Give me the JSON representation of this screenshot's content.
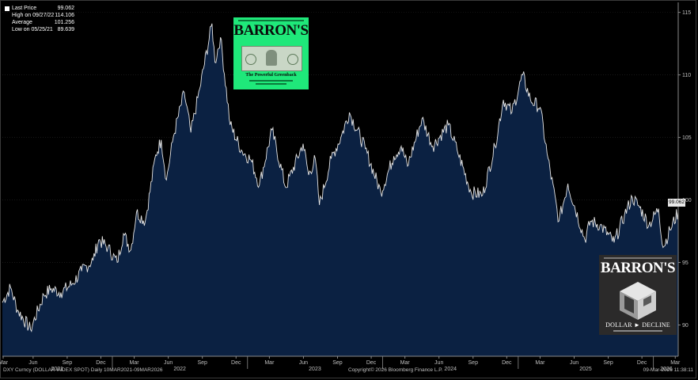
{
  "chart_data": {
    "type": "area",
    "y_axis_side": "right",
    "ylim": [
      87.5,
      115.8
    ],
    "yticks": [
      90,
      95,
      100,
      105,
      110,
      115
    ],
    "x_start": "2021-03-10",
    "x_end": "2026-03-09",
    "month_ticks": [
      "Mar",
      "Jun",
      "Sep",
      "Dec",
      "Mar",
      "Jun",
      "Sep",
      "Dec",
      "Mar",
      "Jun",
      "Sep",
      "Dec",
      "Mar",
      "Jun",
      "Sep",
      "Dec",
      "Mar",
      "Jun",
      "Sep",
      "Dec",
      "Mar"
    ],
    "year_labels": [
      "2021",
      "2022",
      "2023",
      "2024",
      "2025",
      "2026"
    ],
    "fill_color": "#0b2142",
    "line_color": "#e6e6e6",
    "series": [
      {
        "points": [
          [
            "2021-03-10",
            91.8
          ],
          [
            "2021-04-01",
            93.0
          ],
          [
            "2021-04-20",
            91.2
          ],
          [
            "2021-05-25",
            89.639
          ],
          [
            "2021-06-30",
            92.4
          ],
          [
            "2021-07-20",
            92.9
          ],
          [
            "2021-08-15",
            92.6
          ],
          [
            "2021-09-15",
            93.3
          ],
          [
            "2021-10-10",
            94.3
          ],
          [
            "2021-11-10",
            95.2
          ],
          [
            "2021-11-25",
            96.8
          ],
          [
            "2021-12-20",
            96.2
          ],
          [
            "2022-01-14",
            95.0
          ],
          [
            "2022-01-31",
            97.3
          ],
          [
            "2022-02-20",
            96.0
          ],
          [
            "2022-03-07",
            99.0
          ],
          [
            "2022-03-31",
            98.3
          ],
          [
            "2022-04-28",
            103.6
          ],
          [
            "2022-05-13",
            104.8
          ],
          [
            "2022-05-27",
            101.6
          ],
          [
            "2022-06-15",
            105.1
          ],
          [
            "2022-07-14",
            108.6
          ],
          [
            "2022-08-01",
            105.4
          ],
          [
            "2022-08-25",
            108.9
          ],
          [
            "2022-09-27",
            114.106
          ],
          [
            "2022-10-05",
            111.0
          ],
          [
            "2022-10-20",
            113.0
          ],
          [
            "2022-11-15",
            106.0
          ],
          [
            "2022-12-15",
            104.0
          ],
          [
            "2023-01-10",
            103.2
          ],
          [
            "2023-02-02",
            101.2
          ],
          [
            "2023-03-08",
            105.6
          ],
          [
            "2023-04-14",
            101.0
          ],
          [
            "2023-05-31",
            104.5
          ],
          [
            "2023-06-15",
            102.0
          ],
          [
            "2023-07-03",
            103.3
          ],
          [
            "2023-07-14",
            99.6
          ],
          [
            "2023-08-15",
            103.3
          ],
          [
            "2023-09-10",
            105.0
          ],
          [
            "2023-10-03",
            107.0
          ],
          [
            "2023-11-15",
            104.1
          ],
          [
            "2023-12-27",
            100.6
          ],
          [
            "2024-01-31",
            103.5
          ],
          [
            "2024-02-20",
            104.3
          ],
          [
            "2024-03-08",
            102.7
          ],
          [
            "2024-04-16",
            106.5
          ],
          [
            "2024-05-15",
            104.3
          ],
          [
            "2024-06-26",
            106.0
          ],
          [
            "2024-07-20",
            104.0
          ],
          [
            "2024-08-27",
            100.6
          ],
          [
            "2024-09-27",
            100.4
          ],
          [
            "2024-10-30",
            104.3
          ],
          [
            "2024-11-22",
            108.0
          ],
          [
            "2024-12-15",
            107.0
          ],
          [
            "2025-01-13",
            110.0
          ],
          [
            "2025-02-03",
            108.0
          ],
          [
            "2025-03-01",
            107.4
          ],
          [
            "2025-03-20",
            103.7
          ],
          [
            "2025-04-21",
            98.3
          ],
          [
            "2025-05-15",
            101.3
          ],
          [
            "2025-06-30",
            96.8
          ],
          [
            "2025-07-15",
            98.3
          ],
          [
            "2025-08-10",
            98.0
          ],
          [
            "2025-09-17",
            96.6
          ],
          [
            "2025-10-15",
            98.8
          ],
          [
            "2025-11-05",
            100.2
          ],
          [
            "2025-11-25",
            99.4
          ],
          [
            "2025-12-20",
            98.0
          ],
          [
            "2026-01-15",
            99.3
          ],
          [
            "2026-01-27",
            96.2
          ],
          [
            "2026-02-15",
            97.6
          ],
          [
            "2026-03-09",
            99.062
          ]
        ]
      }
    ],
    "last_value_tag": "99.062"
  },
  "legend": [
    {
      "label": "Last Price",
      "value": "99.062",
      "color": "#ffffff"
    },
    {
      "label": "High on 09/27/22",
      "value": "114.106",
      "color": "#000000"
    },
    {
      "label": "Average",
      "value": "101.256",
      "color": "#000000"
    },
    {
      "label": "Low on 05/25/21",
      "value": "89.639",
      "color": "#000000"
    }
  ],
  "footer": {
    "left": "DXY Curncy (DOLLAR INDEX SPOT) Daily 10MAR2021-09MAR2026",
    "center": "Copyright© 2026 Bloomberg Finance L.P.",
    "right": "09-Mar-2026 11:38:11"
  },
  "covers": {
    "cover1": {
      "masthead": "BARRON'S",
      "headline": "The Powerful Greenback"
    },
    "cover2": {
      "masthead": "BARRON'S",
      "headline": "DOLLAR ► DECLINE"
    }
  }
}
